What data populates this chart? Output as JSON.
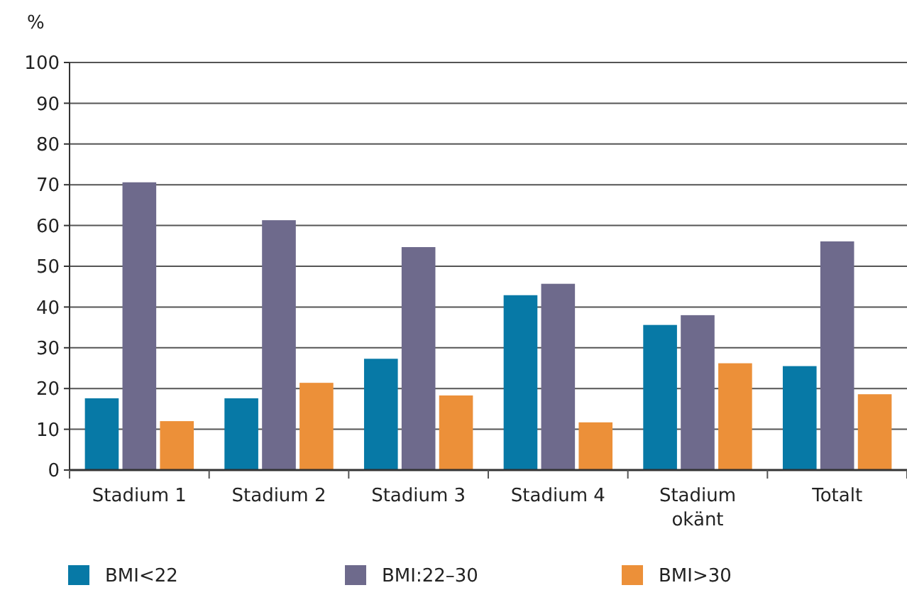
{
  "chart_data": {
    "type": "bar",
    "ylabel": "%",
    "categories": [
      "Stadium 1",
      "Stadium 2",
      "Stadium 3",
      "Stadium 4",
      "Stadium okänt",
      "Totalt"
    ],
    "series": [
      {
        "name": "BMI<22",
        "color": "#0779a6",
        "values": [
          17.6,
          17.6,
          27.3,
          42.9,
          35.6,
          25.5
        ]
      },
      {
        "name": "BMI:22–30",
        "color": "#6e6a8c",
        "values": [
          70.6,
          61.3,
          54.7,
          45.7,
          38.0,
          56.1
        ]
      },
      {
        "name": "BMI>30",
        "color": "#ec9039",
        "values": [
          12.0,
          21.4,
          18.3,
          11.7,
          26.2,
          18.6
        ]
      }
    ],
    "ylim": [
      0,
      100
    ],
    "yticks": [
      0,
      10,
      20,
      30,
      40,
      50,
      60,
      70,
      80,
      90,
      100
    ],
    "grid": "y",
    "legend": "bottom"
  }
}
